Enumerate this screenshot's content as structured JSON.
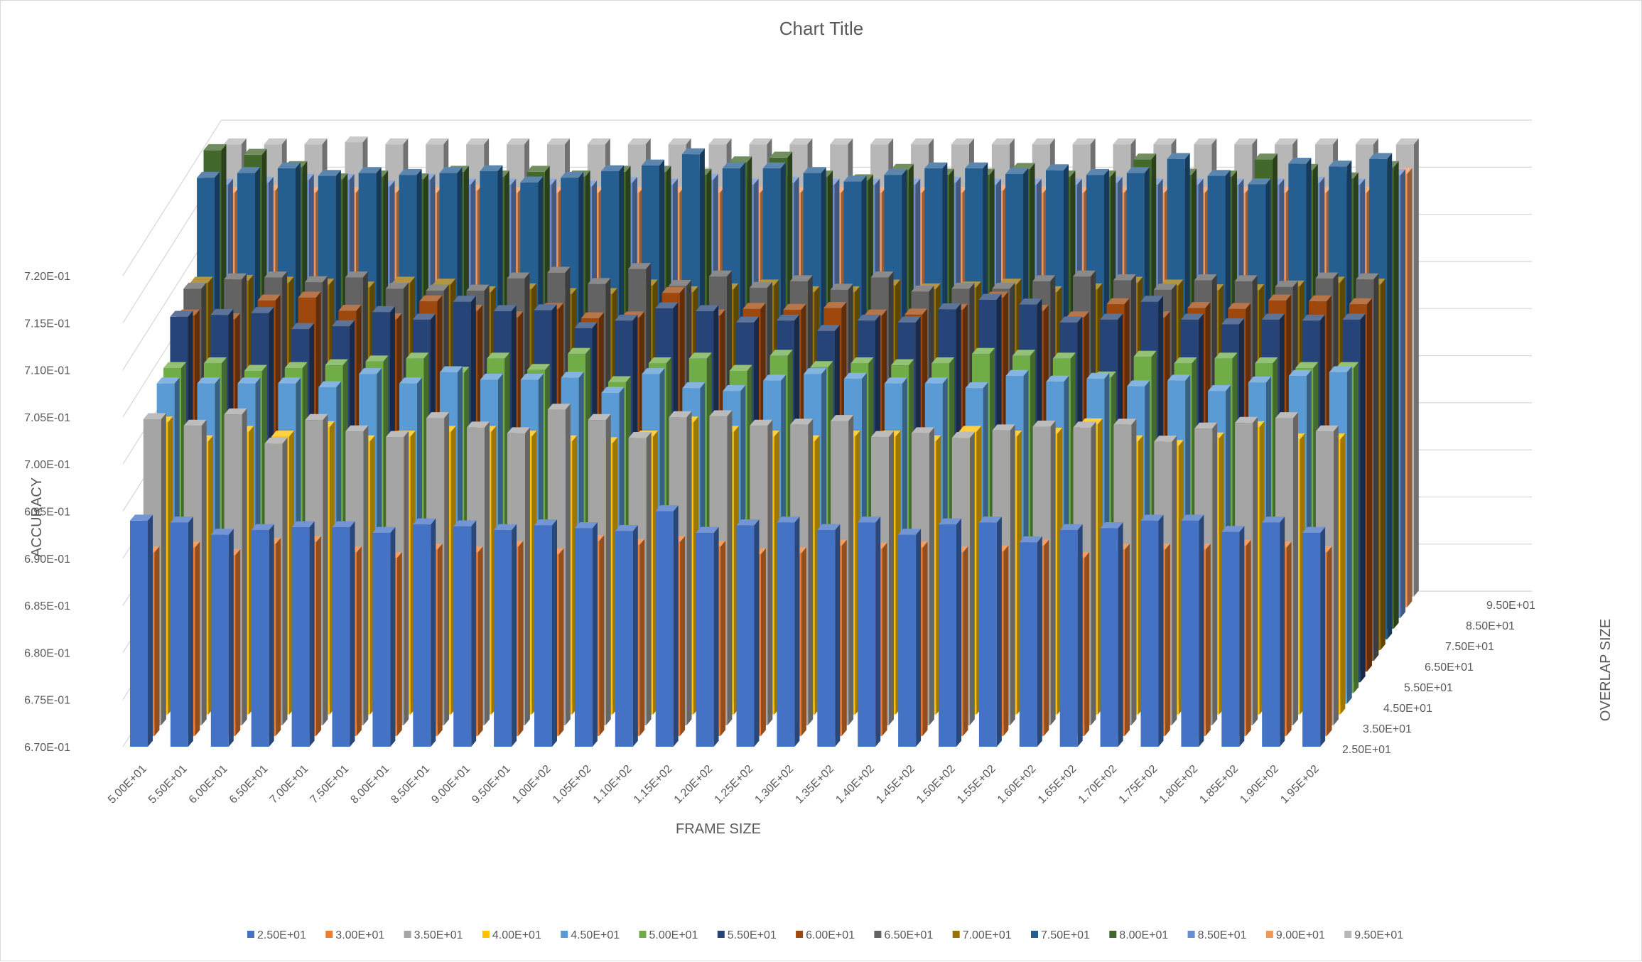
{
  "chart_data": {
    "type": "bar3d",
    "title": "Chart Title",
    "xlabel": "FRAME SIZE",
    "ylabel": "ACCURACY",
    "zlabel": "OVERLAP SIZE",
    "ylim": [
      0.67,
      0.7225
    ],
    "y_ticks": [
      "6.70E-01",
      "6.75E-01",
      "6.80E-01",
      "6.85E-01",
      "6.90E-01",
      "6.95E-01",
      "7.00E-01",
      "7.05E-01",
      "7.10E-01",
      "7.15E-01",
      "7.20E-01"
    ],
    "y_tick_values": [
      0.67,
      0.675,
      0.68,
      0.685,
      0.69,
      0.695,
      0.7,
      0.705,
      0.71,
      0.715,
      0.72
    ],
    "categories": [
      "5.00E+01",
      "5.50E+01",
      "6.00E+01",
      "6.50E+01",
      "7.00E+01",
      "7.50E+01",
      "8.00E+01",
      "8.50E+01",
      "9.00E+01",
      "9.50E+01",
      "1.00E+02",
      "1.05E+02",
      "1.10E+02",
      "1.15E+02",
      "1.20E+02",
      "1.25E+02",
      "1.30E+02",
      "1.35E+02",
      "1.40E+02",
      "1.45E+02",
      "1.50E+02",
      "1.55E+02",
      "1.60E+02",
      "1.65E+02",
      "1.70E+02",
      "1.75E+02",
      "1.80E+02",
      "1.85E+02",
      "1.90E+02",
      "1.95E+02"
    ],
    "depth_labels": [
      "2.50E+01",
      "3.50E+01",
      "4.50E+01",
      "5.50E+01",
      "6.50E+01",
      "7.50E+01",
      "8.50E+01",
      "9.50E+01"
    ],
    "legend_position": "bottom",
    "grid": true,
    "series": [
      {
        "name": "2.50E+01",
        "color": "#4472C4",
        "values": [
          0.694,
          0.6938,
          0.6925,
          0.693,
          0.6933,
          0.6933,
          0.6927,
          0.6936,
          0.6934,
          0.693,
          0.6935,
          0.6932,
          0.6929,
          0.695,
          0.6927,
          0.6935,
          0.6938,
          0.693,
          0.6938,
          0.6925,
          0.6936,
          0.6938,
          0.6917,
          0.693,
          0.6932,
          0.694,
          0.694,
          0.6928,
          0.6938,
          0.6927
        ]
      },
      {
        "name": "3.00E+01",
        "color": "#ED7D31",
        "values": [
          0.6895,
          0.69,
          0.6892,
          0.6904,
          0.6906,
          0.6895,
          0.6889,
          0.6898,
          0.6895,
          0.6901,
          0.6893,
          0.6907,
          0.6903,
          0.6906,
          0.6901,
          0.6893,
          0.6894,
          0.6902,
          0.6899,
          0.69,
          0.6895,
          0.6896,
          0.6902,
          0.6889,
          0.6898,
          0.6898,
          0.6898,
          0.6902,
          0.69,
          0.6895
        ]
      },
      {
        "name": "3.50E+01",
        "color": "#A5A5A5",
        "values": [
          0.7025,
          0.7018,
          0.703,
          0.6999,
          0.7024,
          0.7012,
          0.7006,
          0.7026,
          0.7016,
          0.701,
          0.7035,
          0.7024,
          0.7005,
          0.7027,
          0.7028,
          0.7018,
          0.7019,
          0.7023,
          0.7006,
          0.701,
          0.7005,
          0.7013,
          0.7017,
          0.7016,
          0.7019,
          0.7001,
          0.7015,
          0.7021,
          0.7026,
          0.7012
        ]
      },
      {
        "name": "4.00E+01",
        "color": "#FFC000",
        "values": [
          0.701,
          0.699,
          0.7,
          0.6995,
          0.7005,
          0.699,
          0.6995,
          0.7,
          0.7,
          0.6995,
          0.699,
          0.6988,
          0.6995,
          0.701,
          0.7,
          0.6995,
          0.699,
          0.6995,
          0.6995,
          0.699,
          0.7,
          0.6995,
          0.6998,
          0.7008,
          0.699,
          0.6985,
          0.6993,
          0.7005,
          0.6992,
          0.6992
        ]
      },
      {
        "name": "4.50E+01",
        "color": "#5B9BD5",
        "values": [
          0.704,
          0.704,
          0.704,
          0.704,
          0.7036,
          0.705,
          0.704,
          0.7052,
          0.7044,
          0.7044,
          0.7046,
          0.703,
          0.705,
          0.7035,
          0.7032,
          0.7043,
          0.705,
          0.7045,
          0.704,
          0.704,
          0.7035,
          0.7048,
          0.7042,
          0.7045,
          0.7037,
          0.7043,
          0.7032,
          0.7041,
          0.7048,
          0.7052
        ]
      },
      {
        "name": "5.00E+01",
        "color": "#70AD47",
        "values": [
          0.7045,
          0.705,
          0.7042,
          0.7045,
          0.7048,
          0.7052,
          0.7055,
          0.704,
          0.7055,
          0.7043,
          0.706,
          0.703,
          0.705,
          0.7055,
          0.7042,
          0.7058,
          0.7046,
          0.705,
          0.7048,
          0.705,
          0.706,
          0.7058,
          0.7055,
          0.7035,
          0.7057,
          0.705,
          0.7055,
          0.705,
          0.7045,
          0.7045
        ]
      },
      {
        "name": "5.50E+01",
        "color": "#264478",
        "values": [
          0.7088,
          0.709,
          0.7092,
          0.7075,
          0.7078,
          0.7093,
          0.7085,
          0.7104,
          0.7094,
          0.7095,
          0.7076,
          0.7084,
          0.7097,
          0.7094,
          0.7082,
          0.7084,
          0.7073,
          0.7084,
          0.7082,
          0.7096,
          0.7106,
          0.7101,
          0.7082,
          0.7085,
          0.7104,
          0.7085,
          0.708,
          0.7085,
          0.7084,
          0.7085
        ]
      },
      {
        "name": "6.00E+01",
        "color": "#9E480E",
        "values": [
          0.7078,
          0.7074,
          0.7094,
          0.7097,
          0.7083,
          0.7074,
          0.7093,
          0.7083,
          0.7076,
          0.7085,
          0.7075,
          0.7076,
          0.7102,
          0.7078,
          0.7085,
          0.7084,
          0.7086,
          0.7078,
          0.7079,
          0.7084,
          0.7097,
          0.7083,
          0.7076,
          0.709,
          0.7076,
          0.7086,
          0.7085,
          0.7094,
          0.7093,
          0.709
        ]
      },
      {
        "name": "6.50E+01",
        "color": "#636363",
        "values": [
          0.7095,
          0.7105,
          0.7107,
          0.7102,
          0.7107,
          0.7095,
          0.7093,
          0.7093,
          0.7106,
          0.7112,
          0.71,
          0.7116,
          0.7098,
          0.7108,
          0.7096,
          0.7103,
          0.7094,
          0.7107,
          0.7092,
          0.7095,
          0.7095,
          0.7103,
          0.7108,
          0.7104,
          0.7094,
          0.7104,
          0.7103,
          0.7097,
          0.7106,
          0.7105
        ]
      },
      {
        "name": "7.00E+01",
        "color": "#997300",
        "values": [
          0.709,
          0.7092,
          0.709,
          0.7088,
          0.7085,
          0.709,
          0.7088,
          0.708,
          0.7083,
          0.7078,
          0.7078,
          0.7087,
          0.708,
          0.7083,
          0.7087,
          0.708,
          0.708,
          0.7087,
          0.7083,
          0.7085,
          0.7088,
          0.708,
          0.7083,
          0.709,
          0.7087,
          0.7082,
          0.7082,
          0.7086,
          0.709,
          0.7088
        ]
      },
      {
        "name": "7.50E+01",
        "color": "#255E91",
        "values": [
          0.719,
          0.7195,
          0.72,
          0.7192,
          0.7195,
          0.7193,
          0.7195,
          0.7197,
          0.7185,
          0.719,
          0.7197,
          0.7203,
          0.7215,
          0.72,
          0.72,
          0.7195,
          0.7186,
          0.7193,
          0.72,
          0.72,
          0.7194,
          0.7198,
          0.7193,
          0.7195,
          0.721,
          0.7192,
          0.7183,
          0.7205,
          0.7202,
          0.721
        ]
      },
      {
        "name": "8.00E+01",
        "color": "#43682B",
        "values": [
          0.7208,
          0.7203,
          0.719,
          0.7177,
          0.718,
          0.7177,
          0.7185,
          0.718,
          0.7185,
          0.718,
          0.7185,
          0.7185,
          0.7182,
          0.7195,
          0.72,
          0.718,
          0.7176,
          0.7187,
          0.7182,
          0.7182,
          0.7188,
          0.718,
          0.718,
          0.7198,
          0.7182,
          0.718,
          0.7198,
          0.7187,
          0.7178,
          0.719
        ]
      },
      {
        "name": "8.50E+01",
        "color": "#698ED0",
        "values": [
          0.716,
          0.7162,
          0.7165,
          0.7165,
          0.7158,
          0.7165,
          0.716,
          0.716,
          0.716,
          0.7158,
          0.7162,
          0.716,
          0.7165,
          0.716,
          0.7162,
          0.716,
          0.716,
          0.716,
          0.7162,
          0.716,
          0.716,
          0.716,
          0.7162,
          0.716,
          0.716,
          0.716,
          0.716,
          0.7162,
          0.716,
          0.717
        ]
      },
      {
        "name": "9.00E+01",
        "color": "#F1975A",
        "values": [
          0.714,
          0.7142,
          0.714,
          0.714,
          0.714,
          0.714,
          0.7142,
          0.714,
          0.714,
          0.714,
          0.714,
          0.714,
          0.714,
          0.714,
          0.714,
          0.714,
          0.714,
          0.714,
          0.714,
          0.7142,
          0.714,
          0.714,
          0.714,
          0.714,
          0.714,
          0.714,
          0.714,
          0.714,
          0.714,
          0.716
        ]
      },
      {
        "name": "9.50E+01",
        "color": "#B7B7B7",
        "values": [
          0.718,
          0.718,
          0.718,
          0.7182,
          0.718,
          0.718,
          0.718,
          0.718,
          0.718,
          0.718,
          0.718,
          0.718,
          0.718,
          0.718,
          0.718,
          0.718,
          0.718,
          0.718,
          0.718,
          0.718,
          0.718,
          0.718,
          0.718,
          0.718,
          0.718,
          0.718,
          0.718,
          0.718,
          0.718,
          0.718
        ]
      }
    ]
  }
}
